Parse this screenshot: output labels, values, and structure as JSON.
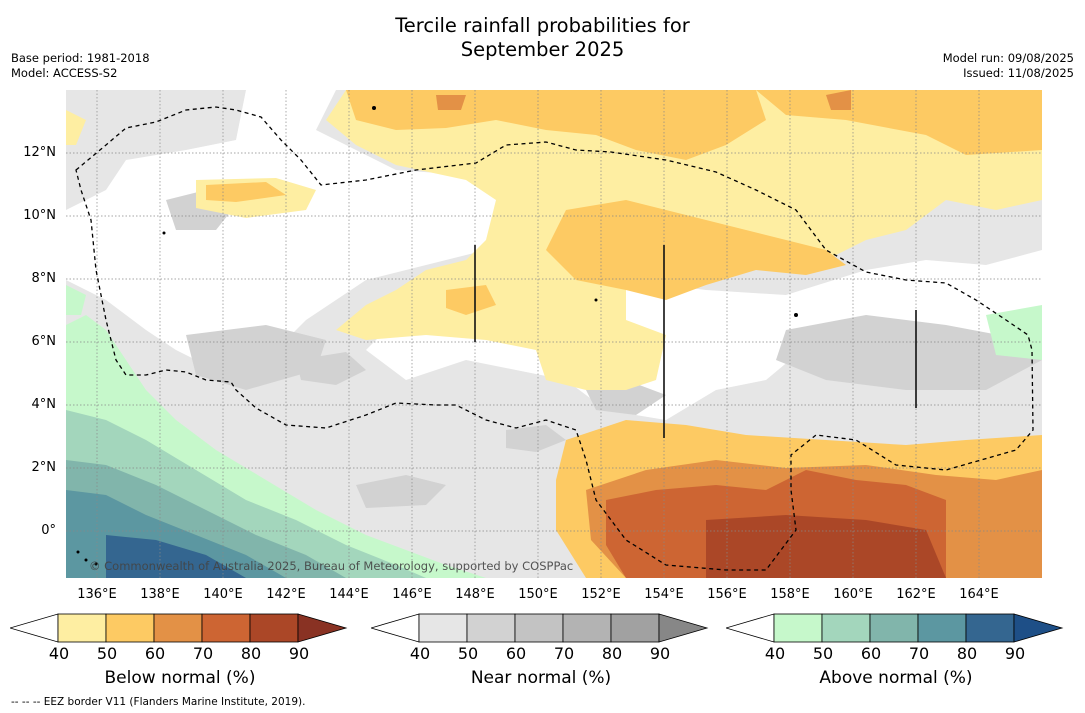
{
  "title": {
    "line1": "Tercile rainfall probabilities for",
    "line2": "September 2025"
  },
  "meta_left": {
    "base_period": "Base period: 1981-2018",
    "model": "Model: ACCESS-S2"
  },
  "meta_right": {
    "model_run": "Model run: 09/08/2025",
    "issued": "Issued: 11/08/2025"
  },
  "map": {
    "lat_labels": [
      "12°N",
      "10°N",
      "8°N",
      "6°N",
      "4°N",
      "2°N",
      "0°"
    ],
    "lon_labels": [
      "136°E",
      "138°E",
      "140°E",
      "142°E",
      "144°E",
      "146°E",
      "148°E",
      "150°E",
      "152°E",
      "154°E",
      "156°E",
      "158°E",
      "160°E",
      "162°E",
      "164°E"
    ],
    "copyright": "© Commonwealth of Australia 2025, Bureau of Meteorology, supported by COSPPac"
  },
  "colorbars": {
    "below": {
      "label": "Below normal (%)",
      "ticks": [
        "40",
        "50",
        "60",
        "70",
        "80",
        "90"
      ],
      "colors": [
        "#ffffff",
        "#feeea2",
        "#fdca63",
        "#e39146",
        "#cd6533",
        "#ab4727",
        "#893223"
      ]
    },
    "near": {
      "label": "Near normal (%)",
      "ticks": [
        "40",
        "50",
        "60",
        "70",
        "80",
        "90"
      ],
      "colors": [
        "#ffffff",
        "#e6e6e6",
        "#d2d2d2",
        "#c3c3c3",
        "#b3b3b3",
        "#a1a1a1",
        "#878787"
      ]
    },
    "above": {
      "label": "Above normal (%)",
      "ticks": [
        "40",
        "50",
        "60",
        "70",
        "80",
        "90"
      ],
      "colors": [
        "#ffffff",
        "#c6f8cb",
        "#a3d6bc",
        "#81b5ab",
        "#5c97a1",
        "#346690",
        "#1e4f87"
      ]
    }
  },
  "footnote": "--  --  -- EEZ border V11 (Flanders Marine Institute, 2019)."
}
